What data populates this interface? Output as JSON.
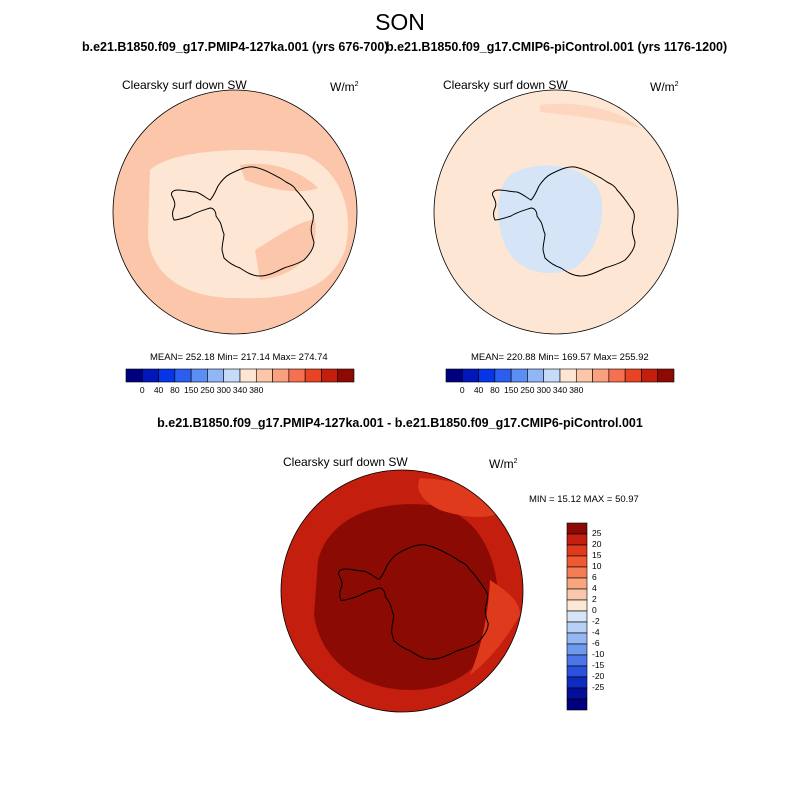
{
  "title": "SON",
  "panel1": {
    "case": "b.e21.B1850.f09_g17.PMIP4-127ka.001 (yrs 676-700)",
    "variable": "Clearsky surf down SW",
    "unit_base": "W/m",
    "unit_exp": "2",
    "stats": "MEAN= 252.18  Min= 217.14  Max= 274.74"
  },
  "panel2": {
    "case": "b.e21.B1850.f09_g17.CMIP6-piControl.001 (yrs 1176-1200)",
    "variable": "Clearsky surf down SW",
    "unit_base": "W/m",
    "unit_exp": "2",
    "stats": "MEAN= 220.88  Min= 169.57  Max= 255.92"
  },
  "colorbar_top": {
    "colors": [
      "#00007f",
      "#0017b9",
      "#0535e6",
      "#2b5df0",
      "#5c8ff5",
      "#90b6f7",
      "#c6dbf9",
      "#fde6d3",
      "#fcc6aa",
      "#f9a07c",
      "#f4704e",
      "#e84424",
      "#c41e0e",
      "#8c0a04"
    ],
    "labels": [
      "0",
      "40",
      "80",
      "150",
      "250",
      "300",
      "340",
      "380"
    ]
  },
  "diff": {
    "title": "b.e21.B1850.f09_g17.PMIP4-127ka.001 - b.e21.B1850.f09_g17.CMIP6-piControl.001",
    "variable": "Clearsky surf down SW",
    "unit_base": "W/m",
    "unit_exp": "2",
    "stats": "MIN =  15.12 MAX =  50.97"
  },
  "colorbar_diff": {
    "colors": [
      "#8c0a04",
      "#c41e0e",
      "#e03a1c",
      "#f05a32",
      "#f57d56",
      "#f9a580",
      "#fbc7aa",
      "#fde7d5",
      "#d5e4f7",
      "#b6cff5",
      "#94b7f3",
      "#6f99ef",
      "#4a76ea",
      "#2a52dc",
      "#0f2cc0",
      "#040f99",
      "#00007f"
    ],
    "labels": [
      "25",
      "20",
      "15",
      "10",
      "6",
      "4",
      "2",
      "0",
      "-2",
      "-4",
      "-6",
      "-10",
      "-15",
      "-20",
      "-25"
    ]
  }
}
